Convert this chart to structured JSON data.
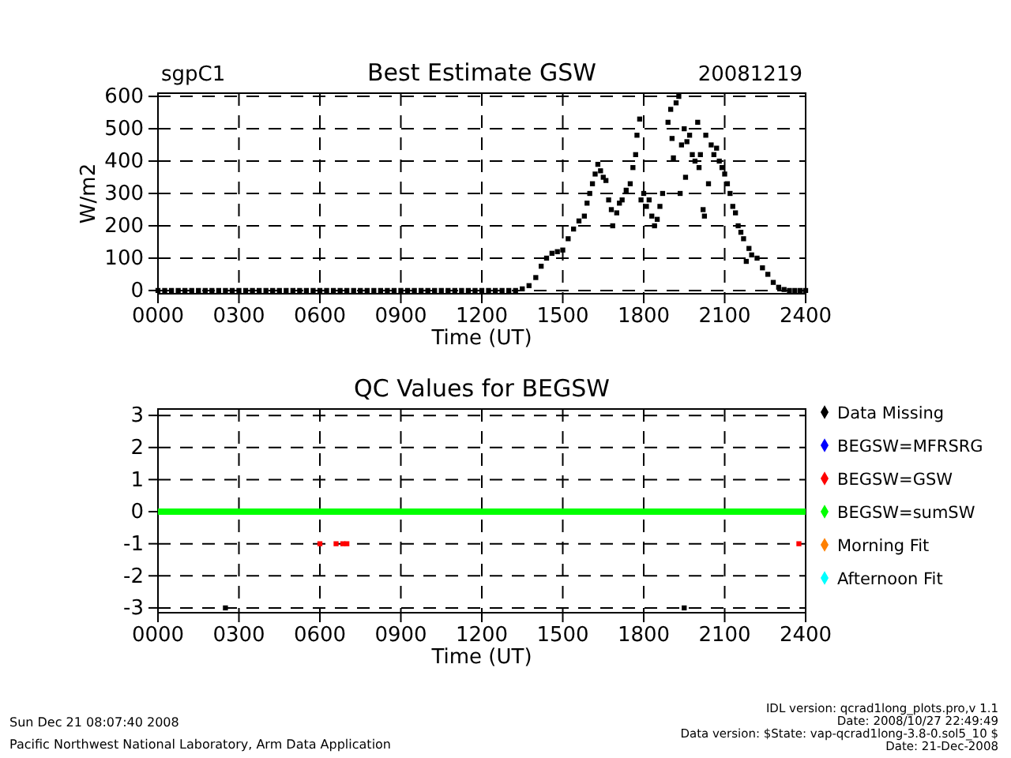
{
  "chart_data": [
    {
      "type": "scatter",
      "title": "Best Estimate GSW",
      "xlabel": "Time (UT)",
      "ylabel": "W/m2",
      "annotations": [
        "sgpC1",
        "20081219"
      ],
      "xlim": [
        0,
        2400
      ],
      "xticks": [
        {
          "value": 0,
          "label": "0000"
        },
        {
          "value": 300,
          "label": "0300"
        },
        {
          "value": 600,
          "label": "0600"
        },
        {
          "value": 900,
          "label": "0900"
        },
        {
          "value": 1200,
          "label": "1200"
        },
        {
          "value": 1500,
          "label": "1500"
        },
        {
          "value": 1800,
          "label": "1800"
        },
        {
          "value": 2100,
          "label": "2100"
        },
        {
          "value": 2400,
          "label": "2400"
        }
      ],
      "ylim": [
        -10,
        610
      ],
      "yticks": [
        0,
        100,
        200,
        300,
        400,
        500,
        600
      ],
      "grid": true,
      "marker": "square",
      "legend": false,
      "series": [
        {
          "color": "#000000",
          "x": [
            0,
            25,
            50,
            75,
            100,
            125,
            150,
            175,
            200,
            225,
            250,
            275,
            300,
            325,
            350,
            375,
            400,
            425,
            450,
            475,
            500,
            525,
            550,
            575,
            600,
            625,
            650,
            675,
            700,
            725,
            750,
            775,
            800,
            825,
            850,
            875,
            900,
            925,
            950,
            975,
            1000,
            1025,
            1050,
            1075,
            1100,
            1125,
            1150,
            1175,
            1200,
            1225,
            1250,
            1275,
            1300,
            1325,
            1350,
            1375,
            1400,
            1420,
            1440,
            1460,
            1480,
            1500,
            1520,
            1540,
            1560,
            1580,
            1590,
            1600,
            1610,
            1620,
            1630,
            1640,
            1650,
            1660,
            1670,
            1680,
            1685,
            1700,
            1710,
            1720,
            1735,
            1750,
            1760,
            1770,
            1775,
            1785,
            1790,
            1800,
            1810,
            1820,
            1830,
            1840,
            1850,
            1860,
            1870,
            1890,
            1900,
            1905,
            1910,
            1920,
            1930,
            1935,
            1940,
            1950,
            1955,
            1960,
            1970,
            1980,
            1990,
            2000,
            2005,
            2010,
            2020,
            2025,
            2030,
            2040,
            2050,
            2060,
            2070,
            2080,
            2090,
            2100,
            2110,
            2120,
            2130,
            2140,
            2150,
            2160,
            2170,
            2180,
            2190,
            2200,
            2220,
            2240,
            2260,
            2280,
            2300,
            2320,
            2340,
            2360,
            2380,
            2400
          ],
          "values": [
            0,
            0,
            0,
            0,
            0,
            0,
            0,
            0,
            0,
            0,
            0,
            0,
            0,
            0,
            0,
            0,
            0,
            0,
            0,
            0,
            0,
            0,
            0,
            0,
            0,
            0,
            0,
            0,
            0,
            0,
            0,
            0,
            0,
            0,
            0,
            0,
            0,
            0,
            0,
            0,
            0,
            0,
            0,
            0,
            0,
            0,
            0,
            0,
            0,
            0,
            0,
            0,
            0,
            0,
            5,
            15,
            40,
            75,
            100,
            115,
            120,
            125,
            160,
            190,
            215,
            230,
            270,
            300,
            330,
            360,
            390,
            370,
            350,
            340,
            280,
            250,
            200,
            240,
            270,
            280,
            310,
            330,
            380,
            420,
            480,
            530,
            280,
            300,
            260,
            280,
            230,
            200,
            220,
            260,
            300,
            520,
            560,
            470,
            410,
            580,
            600,
            300,
            450,
            500,
            350,
            460,
            480,
            420,
            400,
            520,
            380,
            420,
            250,
            230,
            480,
            330,
            450,
            420,
            440,
            400,
            380,
            360,
            330,
            300,
            260,
            240,
            200,
            180,
            160,
            90,
            130,
            110,
            100,
            70,
            50,
            25,
            10,
            3,
            0,
            0,
            0,
            0
          ]
        }
      ]
    },
    {
      "type": "scatter",
      "title": "QC Values for BEGSW",
      "xlabel": "Time (UT)",
      "annotations": [
        "Sun Dec 21 08:07:40 2008",
        "Pacific Northwest National Laboratory, Arm Data Application",
        "IDL version: qcrad1long_plots.pro,v 1.1",
        "Date: 2008/10/27 22:49:49",
        "Data version: $State: vap-qcrad1long-3.8-0.sol5_10 $",
        "Date: 21-Dec-2008"
      ],
      "xlim": [
        0,
        2400
      ],
      "xticks": [
        {
          "value": 0,
          "label": "0000"
        },
        {
          "value": 300,
          "label": "0300"
        },
        {
          "value": 600,
          "label": "0600"
        },
        {
          "value": 900,
          "label": "0900"
        },
        {
          "value": 1200,
          "label": "1200"
        },
        {
          "value": 1500,
          "label": "1500"
        },
        {
          "value": 1800,
          "label": "1800"
        },
        {
          "value": 2100,
          "label": "2100"
        },
        {
          "value": 2400,
          "label": "2400"
        }
      ],
      "ylim": [
        -3.15,
        3.2
      ],
      "yticks": [
        -3,
        -2,
        -1,
        0,
        1,
        2,
        3
      ],
      "grid": true,
      "marker": "square",
      "legend": "right",
      "series": [
        {
          "name": "Data Missing",
          "color": "#000000",
          "x": [
            250,
            1950
          ],
          "values": [
            -3,
            -3
          ]
        },
        {
          "name": "BEGSW=MFRSRG",
          "color": "#0000ff"
        },
        {
          "name": "BEGSW=GSW",
          "color": "#ff0000",
          "x": [
            600,
            660,
            685,
            700,
            2375
          ],
          "values": [
            -1,
            -1,
            -1,
            -1,
            -1
          ]
        },
        {
          "name": "BEGSW=sumSW",
          "type": "line",
          "marker": "none",
          "color": "#00ff00",
          "x": [
            0,
            2400
          ],
          "values": [
            0,
            0
          ]
        },
        {
          "name": "Morning Fit",
          "color": "#ff8000"
        },
        {
          "name": "Afternoon Fit",
          "color": "#00ffff"
        }
      ]
    }
  ]
}
